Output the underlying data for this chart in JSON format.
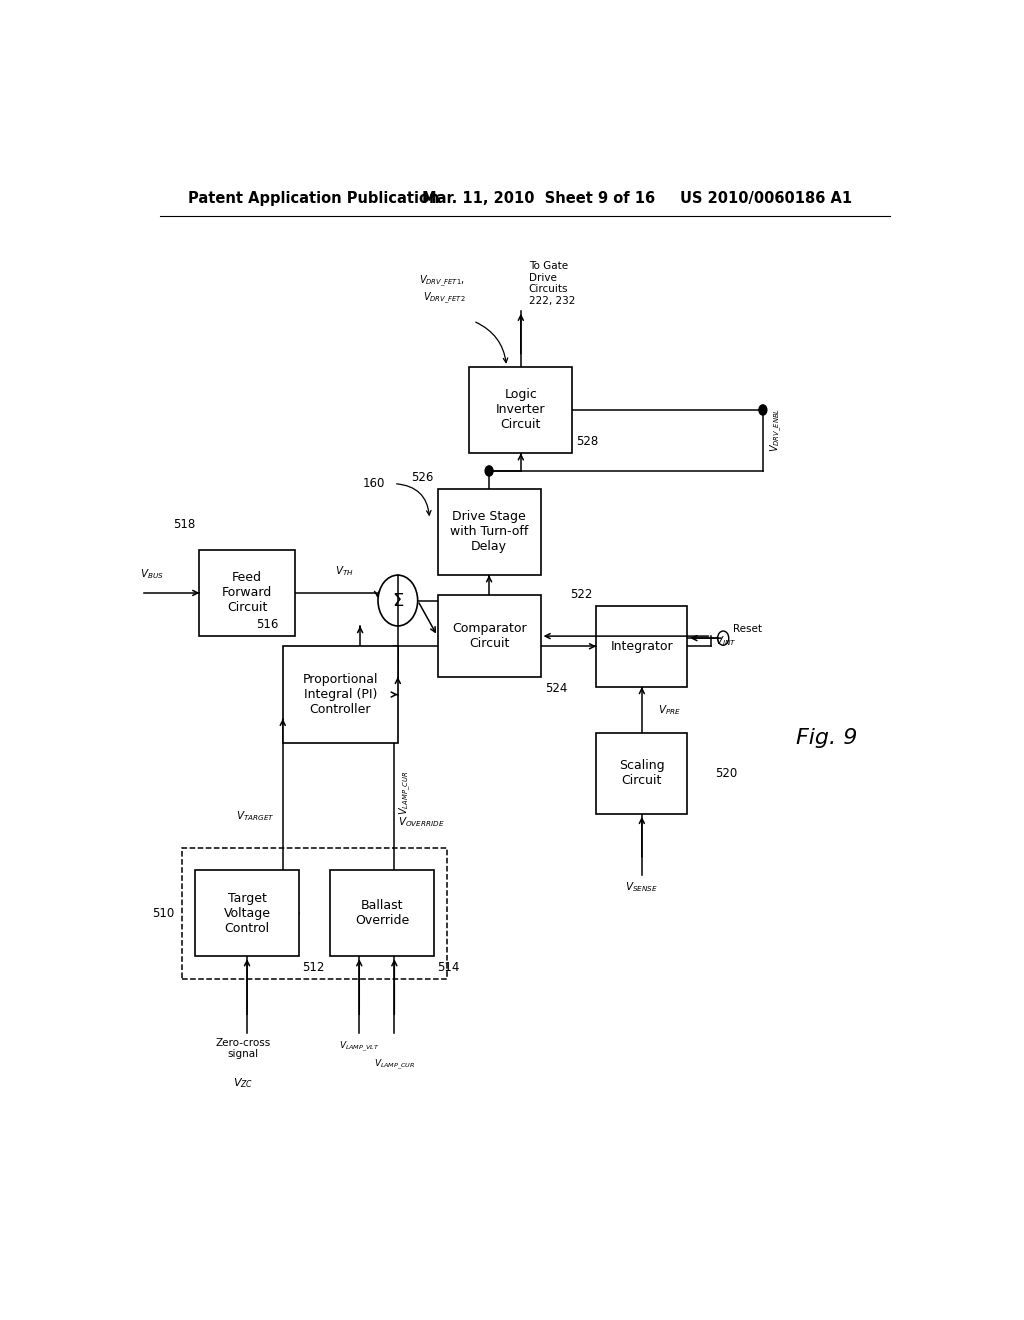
{
  "header_left": "Patent Application Publication",
  "header_mid": "Mar. 11, 2010  Sheet 9 of 16",
  "header_right": "US 2010/0060186 A1",
  "fig_label": "Fig. 9",
  "boxes": {
    "FF": [
      0.09,
      0.53,
      0.12,
      0.085
    ],
    "CMP": [
      0.39,
      0.49,
      0.13,
      0.08
    ],
    "DS": [
      0.39,
      0.59,
      0.13,
      0.085
    ],
    "LI": [
      0.43,
      0.71,
      0.13,
      0.085
    ],
    "PI": [
      0.195,
      0.425,
      0.145,
      0.095
    ],
    "INTG": [
      0.59,
      0.48,
      0.115,
      0.08
    ],
    "SC": [
      0.59,
      0.355,
      0.115,
      0.08
    ],
    "TV": [
      0.085,
      0.215,
      0.13,
      0.085
    ],
    "BO": [
      0.255,
      0.215,
      0.13,
      0.085
    ]
  },
  "summer": [
    0.34,
    0.565,
    0.025
  ],
  "labels": {
    "FF": "Feed\nForward\nCircuit",
    "CMP": "Comparator\nCircuit",
    "DS": "Drive Stage\nwith Turn-off\nDelay",
    "LI": "Logic\nInverter\nCircuit",
    "PI": "Proportional\nIntegral (PI)\nController",
    "INTG": "Integrator",
    "SC": "Scaling\nCircuit",
    "TV": "Target\nVoltage\nControl",
    "BO": "Ballast\nOverride"
  },
  "refs": {
    "FF": "518",
    "CMP": "524",
    "DS": "526",
    "LI": "528",
    "PI": "516",
    "INTG": "522",
    "SC": "520",
    "TV": "512",
    "BO": "514",
    "DASH": "510"
  },
  "lw": 1.1,
  "fs": 9.0,
  "fs_sm": 7.5,
  "fs_ref": 8.5,
  "fs_header": 10.5,
  "fs_fig": 16
}
